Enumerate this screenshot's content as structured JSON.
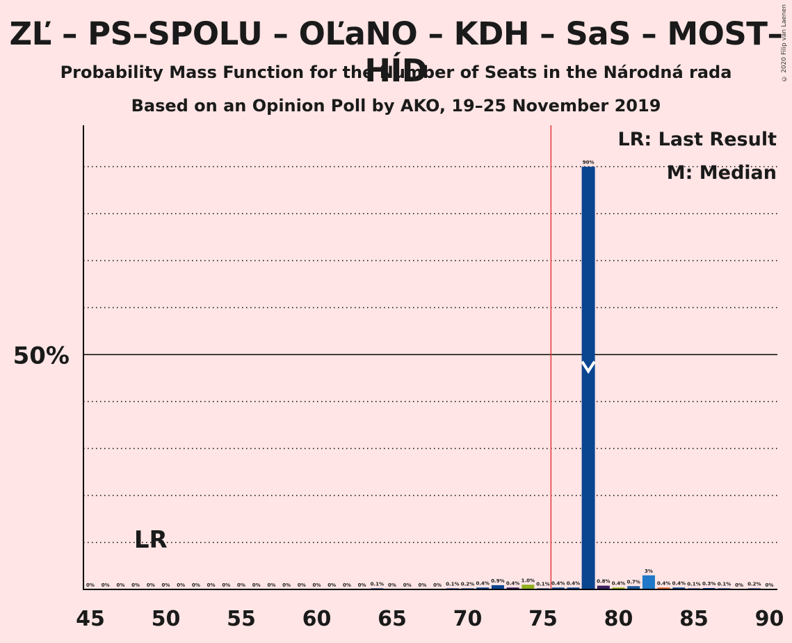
{
  "title": "ZĽ – PS–SPOLU – OĽaNO – KDH – SaS – MOST–HÍD",
  "subtitle_1": "Probability Mass Function for the Number of Seats in the Národná rada",
  "subtitle_2": "Based on an Opinion Poll by AKO, 19–25 November 2019",
  "copyright": "© 2020 Filip van Laenen",
  "legend": {
    "last_result": "LR: Last Result",
    "median": "M: Median"
  },
  "colors": {
    "background": "#ffe5e5",
    "majority_line": "#e03030",
    "median_bar": "#0a4590",
    "text": "#1a1a1a"
  },
  "chart_data": {
    "type": "bar",
    "x_range": [
      45,
      90
    ],
    "x_ticks": [
      45,
      50,
      55,
      60,
      65,
      70,
      75,
      80,
      85,
      90
    ],
    "y_label_50": "50%",
    "ylim": [
      0,
      100
    ],
    "y_gridlines": [
      10,
      20,
      30,
      40,
      50,
      60,
      70,
      80,
      90
    ],
    "majority_threshold": 76,
    "last_result_seat": 49,
    "last_result_label": "LR",
    "median_seat": 78,
    "median_label": "M",
    "seats": [
      45,
      46,
      47,
      48,
      49,
      50,
      51,
      52,
      53,
      54,
      55,
      56,
      57,
      58,
      59,
      60,
      61,
      62,
      63,
      64,
      65,
      66,
      67,
      68,
      69,
      70,
      71,
      72,
      73,
      74,
      75,
      76,
      77,
      78,
      79,
      80,
      81,
      82,
      83,
      84,
      85,
      86,
      87,
      88,
      89,
      90
    ],
    "values": [
      0,
      0,
      0,
      0,
      0,
      0,
      0,
      0,
      0,
      0,
      0,
      0,
      0,
      0,
      0,
      0,
      0,
      0,
      0,
      0.1,
      0,
      0,
      0,
      0,
      0.1,
      0.2,
      0.4,
      0.9,
      0.4,
      1.0,
      0.1,
      0.4,
      0.4,
      90,
      0.8,
      0.4,
      0.7,
      3,
      0.4,
      0.4,
      0.1,
      0.3,
      0.1,
      0,
      0.2,
      0
    ],
    "labels": [
      "0%",
      "0%",
      "0%",
      "0%",
      "0%",
      "0%",
      "0%",
      "0%",
      "0%",
      "0%",
      "0%",
      "0%",
      "0%",
      "0%",
      "0%",
      "0%",
      "0%",
      "0%",
      "0%",
      "0.1%",
      "0%",
      "0%",
      "0%",
      "0%",
      "0.1%",
      "0.2%",
      "0.4%",
      "0.9%",
      "0.4%",
      "1.0%",
      "0.1%",
      "0.4%",
      "0.4%",
      "90%",
      "0.8%",
      "0.4%",
      "0.7%",
      "3%",
      "0.4%",
      "0.4%",
      "0.1%",
      "0.3%",
      "0.1%",
      "0%",
      "0.2%",
      "0%"
    ],
    "bar_colors": {
      "70": "#0a4590",
      "71": "#0a4590",
      "72": "#0a4590",
      "73": "#3a2060",
      "74": "#8fb020",
      "75": "#0a4590",
      "76": "#0a4590",
      "77": "#0a4590",
      "78": "#0a4590",
      "79": "#3a2060",
      "80": "#8fb020",
      "81": "#1a5a9a",
      "82": "#1f78c8",
      "83": "#e06020",
      "84": "#0a4590",
      "85": "#0a4590",
      "86": "#0a4590",
      "87": "#0a4590",
      "88": "#0a4590",
      "89": "#0a4590"
    }
  }
}
